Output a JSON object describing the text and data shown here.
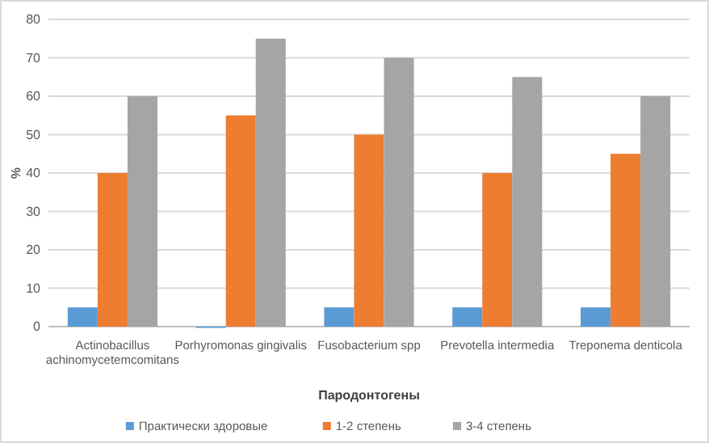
{
  "chart_data": {
    "type": "bar",
    "xlabel": "Пародонтогены",
    "ylabel": "%",
    "categories": [
      "Actinobacillus achinomycetemcomitans",
      "Porhyromonas gingivalis",
      "Fusobacterium spp",
      "Prevotella intermedia",
      "Treponema denticola"
    ],
    "series": [
      {
        "name": "Практически здоровые",
        "color": "#5b9bd5",
        "values": [
          5,
          0,
          5,
          5,
          5
        ]
      },
      {
        "name": "1-2 степень",
        "color": "#ed7d31",
        "values": [
          40,
          55,
          50,
          40,
          45
        ]
      },
      {
        "name": "3-4 степень",
        "color": "#a5a5a5",
        "values": [
          60,
          75,
          70,
          65,
          60
        ]
      }
    ],
    "ylim": [
      0,
      80
    ],
    "yticks": [
      0,
      10,
      20,
      30,
      40,
      50,
      60,
      70,
      80
    ],
    "grid": "y",
    "legend": "bottom"
  }
}
